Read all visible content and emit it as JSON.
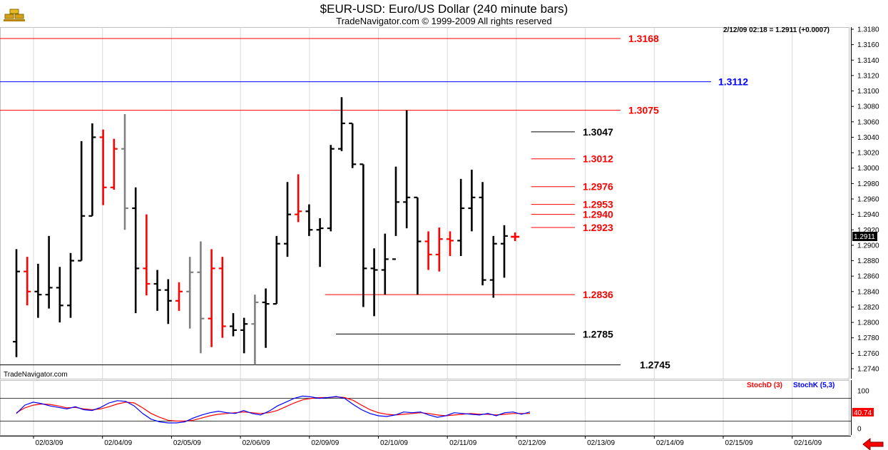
{
  "header": {
    "title": "$EUR-USD:  Euro/US Dollar  (240 minute bars)",
    "subtitle": "TradeNavigator.com © 1999-2009 All rights reserved",
    "quote": "2/12/09 02:18 = 1.2911 (+0.0007)",
    "watermark": "TradeNavigator.com",
    "logo_icon": "gold-bars-icon"
  },
  "chart_data": {
    "type": "ohlc",
    "price_axis": {
      "ylim": [
        1.273,
        1.319
      ],
      "ticks": [
        "1.3180",
        "1.3160",
        "1.3140",
        "1.3120",
        "1.3100",
        "1.3080",
        "1.3060",
        "1.3040",
        "1.3020",
        "1.3000",
        "1.2980",
        "1.2960",
        "1.2940",
        "1.2920",
        "1.2900",
        "1.2880",
        "1.2860",
        "1.2840",
        "1.2820",
        "1.2800",
        "1.2780",
        "1.2760",
        "1.2740"
      ],
      "last_price_label": "1.2911"
    },
    "date_labels": [
      "02/03/09",
      "02/04/09",
      "02/05/09",
      "02/06/09",
      "02/09/09",
      "02/10/09",
      "02/11/09",
      "02/12/09",
      "02/13/09",
      "02/14/09",
      "02/15/09",
      "02/16/09"
    ],
    "bars": [
      {
        "o": 1.2775,
        "h": 1.2895,
        "l": 1.2755,
        "c": 1.2866,
        "color": "#000000"
      },
      {
        "o": 1.2866,
        "h": 1.2885,
        "l": 1.2822,
        "c": 1.284,
        "color": "#ff0000"
      },
      {
        "o": 1.284,
        "h": 1.2876,
        "l": 1.2806,
        "c": 1.2836,
        "color": "#000000"
      },
      {
        "o": 1.2836,
        "h": 1.2912,
        "l": 1.2818,
        "c": 1.2845,
        "color": "#000000"
      },
      {
        "o": 1.2845,
        "h": 1.2872,
        "l": 1.28,
        "c": 1.2822,
        "color": "#000000"
      },
      {
        "o": 1.2822,
        "h": 1.289,
        "l": 1.2806,
        "c": 1.288,
        "color": "#000000"
      },
      {
        "o": 1.288,
        "h": 1.3035,
        "l": 1.288,
        "c": 1.2938,
        "color": "#000000"
      },
      {
        "o": 1.2938,
        "h": 1.3058,
        "l": 1.2938,
        "c": 1.304,
        "color": "#000000"
      },
      {
        "o": 1.304,
        "h": 1.305,
        "l": 1.2952,
        "c": 1.2975,
        "color": "#ff0000"
      },
      {
        "o": 1.2975,
        "h": 1.3038,
        "l": 1.2972,
        "c": 1.3025,
        "color": "#ff0000"
      },
      {
        "o": 1.3025,
        "h": 1.307,
        "l": 1.292,
        "c": 1.2948,
        "color": "#808080"
      },
      {
        "o": 1.2948,
        "h": 1.2975,
        "l": 1.2812,
        "c": 1.287,
        "color": "#000000"
      },
      {
        "o": 1.287,
        "h": 1.294,
        "l": 1.2835,
        "c": 1.285,
        "color": "#ff0000"
      },
      {
        "o": 1.285,
        "h": 1.2868,
        "l": 1.2815,
        "c": 1.2842,
        "color": "#000000"
      },
      {
        "o": 1.2842,
        "h": 1.2856,
        "l": 1.2798,
        "c": 1.2828,
        "color": "#000000"
      },
      {
        "o": 1.2828,
        "h": 1.2852,
        "l": 1.2815,
        "c": 1.284,
        "color": "#ff0000"
      },
      {
        "o": 1.284,
        "h": 1.2885,
        "l": 1.2792,
        "c": 1.2865,
        "color": "#808080"
      },
      {
        "o": 1.2865,
        "h": 1.2905,
        "l": 1.276,
        "c": 1.2805,
        "color": "#808080"
      },
      {
        "o": 1.2805,
        "h": 1.2895,
        "l": 1.2768,
        "c": 1.287,
        "color": "#ff0000"
      },
      {
        "o": 1.287,
        "h": 1.2885,
        "l": 1.278,
        "c": 1.2795,
        "color": "#ff0000"
      },
      {
        "o": 1.2795,
        "h": 1.2812,
        "l": 1.2782,
        "c": 1.279,
        "color": "#000000"
      },
      {
        "o": 1.279,
        "h": 1.2806,
        "l": 1.276,
        "c": 1.2798,
        "color": "#000000"
      },
      {
        "o": 1.2798,
        "h": 1.2836,
        "l": 1.2745,
        "c": 1.2826,
        "color": "#808080"
      },
      {
        "o": 1.2826,
        "h": 1.2844,
        "l": 1.2767,
        "c": 1.2824,
        "color": "#000000"
      },
      {
        "o": 1.2824,
        "h": 1.2912,
        "l": 1.2824,
        "c": 1.2902,
        "color": "#000000"
      },
      {
        "o": 1.2902,
        "h": 1.2982,
        "l": 1.2885,
        "c": 1.294,
        "color": "#000000"
      },
      {
        "o": 1.294,
        "h": 1.2992,
        "l": 1.293,
        "c": 1.2944,
        "color": "#ff0000"
      },
      {
        "o": 1.2944,
        "h": 1.2953,
        "l": 1.2912,
        "c": 1.292,
        "color": "#000000"
      },
      {
        "o": 1.292,
        "h": 1.2935,
        "l": 1.2872,
        "c": 1.2922,
        "color": "#000000"
      },
      {
        "o": 1.2922,
        "h": 1.303,
        "l": 1.2918,
        "c": 1.3025,
        "color": "#000000"
      },
      {
        "o": 1.3025,
        "h": 1.3092,
        "l": 1.3022,
        "c": 1.3058,
        "color": "#000000"
      },
      {
        "o": 1.3058,
        "h": 1.3058,
        "l": 1.3,
        "c": 1.3005,
        "color": "#000000"
      },
      {
        "o": 1.3005,
        "h": 1.3005,
        "l": 1.282,
        "c": 1.287,
        "color": "#000000"
      },
      {
        "o": 1.287,
        "h": 1.2896,
        "l": 1.2808,
        "c": 1.2868,
        "color": "#000000"
      },
      {
        "o": 1.2868,
        "h": 1.2915,
        "l": 1.2836,
        "c": 1.2882,
        "color": "#000000"
      },
      {
        "o": 1.2882,
        "h": 1.3002,
        "l": 1.2912,
        "c": 1.2956,
        "color": "#000000"
      },
      {
        "o": 1.2956,
        "h": 1.3075,
        "l": 1.2922,
        "c": 1.2962,
        "color": "#000000"
      },
      {
        "o": 1.2962,
        "h": 1.2962,
        "l": 1.2836,
        "c": 1.2905,
        "color": "#000000"
      },
      {
        "o": 1.2905,
        "h": 1.2918,
        "l": 1.2868,
        "c": 1.2888,
        "color": "#ff0000"
      },
      {
        "o": 1.2888,
        "h": 1.2923,
        "l": 1.2866,
        "c": 1.2908,
        "color": "#ff0000"
      },
      {
        "o": 1.2908,
        "h": 1.2918,
        "l": 1.2886,
        "c": 1.2906,
        "color": "#ff0000"
      },
      {
        "o": 1.2906,
        "h": 1.2986,
        "l": 1.2886,
        "c": 1.2948,
        "color": "#000000"
      },
      {
        "o": 1.2948,
        "h": 1.2998,
        "l": 1.2918,
        "c": 1.2962,
        "color": "#000000"
      },
      {
        "o": 1.2962,
        "h": 1.2982,
        "l": 1.2848,
        "c": 1.2855,
        "color": "#000000"
      },
      {
        "o": 1.2855,
        "h": 1.2912,
        "l": 1.2832,
        "c": 1.2902,
        "color": "#000000"
      },
      {
        "o": 1.2902,
        "h": 1.2926,
        "l": 1.2858,
        "c": 1.2912,
        "color": "#000000"
      }
    ],
    "current_bar": {
      "price": 1.2911,
      "color": "#ff0000"
    },
    "levels": [
      {
        "value": 1.3168,
        "label": "1.3168",
        "color": "#ff0000",
        "from": 0,
        "to": 70,
        "label_at": 1
      },
      {
        "value": 1.3112,
        "label": "1.3112",
        "color": "#0000ff",
        "from": 0,
        "to": 82,
        "label_at": 2
      },
      {
        "value": 1.3075,
        "label": "1.3075",
        "color": "#ff0000",
        "from": 0,
        "to": 70,
        "label_at": 1
      },
      {
        "value": 1.3047,
        "label": "1.3047",
        "color": "#000000",
        "from": 48,
        "to": 66,
        "label_at": 0
      },
      {
        "value": 1.3012,
        "label": "1.3012",
        "color": "#ff0000",
        "from": 48,
        "to": 66,
        "label_at": 0
      },
      {
        "value": 1.2976,
        "label": "1.2976",
        "color": "#ff0000",
        "from": 48,
        "to": 66,
        "label_at": 0
      },
      {
        "value": 1.2953,
        "label": "1.2953",
        "color": "#ff0000",
        "from": 48,
        "to": 66,
        "label_at": 0
      },
      {
        "value": 1.294,
        "label": "1.2940",
        "color": "#ff0000",
        "from": 48,
        "to": 66,
        "label_at": 0
      },
      {
        "value": 1.2923,
        "label": "1.2923",
        "color": "#ff0000",
        "from": 48,
        "to": 66,
        "label_at": 0
      },
      {
        "value": 1.2836,
        "label": "1.2836",
        "color": "#ff0000",
        "from": 29,
        "to": 66,
        "label_at": 0
      },
      {
        "value": 1.2785,
        "label": "1.2785",
        "color": "#000000",
        "from": 30,
        "to": 66,
        "label_at": 0
      },
      {
        "value": 1.2745,
        "label": "1.2745",
        "color": "#000000",
        "from": 0,
        "to": 70,
        "label_at": 1
      }
    ],
    "oscillator": {
      "ylim": [
        0,
        100
      ],
      "ticks": [
        "100",
        "0"
      ],
      "upper_line": 80,
      "lower_line": 20,
      "last_value_label": "40.74",
      "legend": [
        {
          "name": "StochD (3)",
          "color": "#ff0000"
        },
        {
          "name": "StochK (5,3)",
          "color": "#0000ff"
        }
      ],
      "stoch_d": [
        42,
        55,
        62,
        65,
        64,
        60,
        55,
        56,
        52,
        50,
        52,
        58,
        65,
        70,
        68,
        55,
        40,
        30,
        22,
        20,
        20,
        22,
        28,
        34,
        38,
        40,
        42,
        44,
        42,
        40,
        42,
        48,
        58,
        68,
        76,
        80,
        82,
        82,
        84,
        82,
        75,
        62,
        50,
        42,
        38,
        36,
        38,
        40,
        42,
        40,
        36,
        34,
        36,
        38,
        40,
        38,
        38,
        36,
        38,
        40,
        40,
        40
      ],
      "stoch_k": [
        40,
        62,
        70,
        66,
        60,
        56,
        52,
        58,
        50,
        48,
        56,
        68,
        74,
        72,
        60,
        40,
        25,
        18,
        15,
        15,
        18,
        28,
        36,
        42,
        46,
        42,
        40,
        48,
        40,
        36,
        46,
        60,
        70,
        80,
        86,
        84,
        80,
        82,
        85,
        80,
        64,
        50,
        40,
        34,
        32,
        36,
        44,
        42,
        44,
        36,
        30,
        34,
        42,
        40,
        38,
        36,
        40,
        34,
        42,
        44,
        38,
        44
      ]
    }
  }
}
